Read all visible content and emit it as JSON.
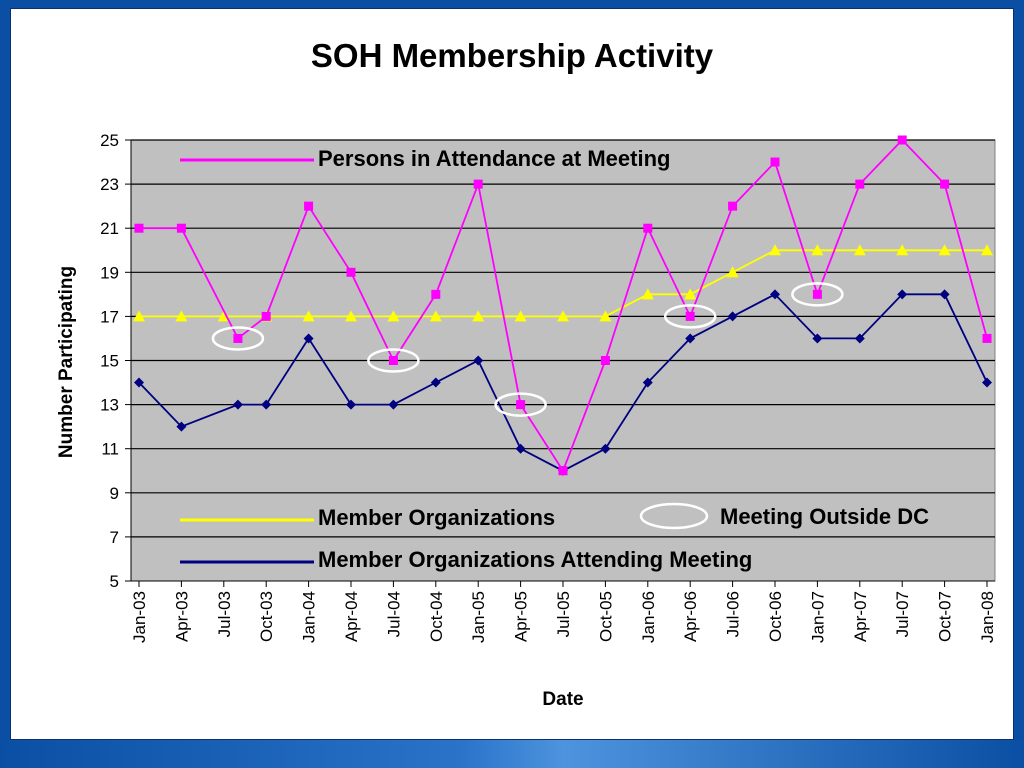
{
  "chart_data": {
    "type": "line",
    "title": "SOH Membership Activity",
    "xlabel": "Date",
    "ylabel": "Number Participating",
    "ylim": [
      5,
      25
    ],
    "yticks": [
      5,
      7,
      9,
      11,
      13,
      15,
      17,
      19,
      21,
      23,
      25
    ],
    "x_tick_labels": [
      "Jan-03",
      "Apr-03",
      "Jul-03",
      "Oct-03",
      "Jan-04",
      "Apr-04",
      "Jul-04",
      "Oct-04",
      "Jan-05",
      "Apr-05",
      "Jul-05",
      "Oct-05",
      "Jan-06",
      "Apr-06",
      "Jul-06",
      "Oct-06",
      "Jan-07",
      "Apr-07",
      "Jul-07",
      "Oct-07",
      "Jan-08"
    ],
    "grid": true,
    "series": [
      {
        "name": "Persons in Attendance at Meeting",
        "color": "#ff00ff",
        "marker": "square",
        "points": [
          {
            "x": "2003-01",
            "y": 21
          },
          {
            "x": "2003-04",
            "y": 21
          },
          {
            "x": "2003-08",
            "y": 16
          },
          {
            "x": "2003-10",
            "y": 17
          },
          {
            "x": "2004-01",
            "y": 22
          },
          {
            "x": "2004-04",
            "y": 19
          },
          {
            "x": "2004-07",
            "y": 15
          },
          {
            "x": "2004-10",
            "y": 18
          },
          {
            "x": "2005-01",
            "y": 23
          },
          {
            "x": "2005-04",
            "y": 13
          },
          {
            "x": "2005-07",
            "y": 10
          },
          {
            "x": "2005-10",
            "y": 15
          },
          {
            "x": "2006-01",
            "y": 21
          },
          {
            "x": "2006-04",
            "y": 17
          },
          {
            "x": "2006-07",
            "y": 22
          },
          {
            "x": "2006-10",
            "y": 24
          },
          {
            "x": "2007-01",
            "y": 18
          },
          {
            "x": "2007-04",
            "y": 23
          },
          {
            "x": "2007-07",
            "y": 25
          },
          {
            "x": "2007-10",
            "y": 23
          },
          {
            "x": "2008-01",
            "y": 16
          }
        ]
      },
      {
        "name": "Member Organizations",
        "color": "#ffff00",
        "marker": "triangle",
        "points": [
          {
            "x": "2003-01",
            "y": 17
          },
          {
            "x": "2003-04",
            "y": 17
          },
          {
            "x": "2003-07",
            "y": 17
          },
          {
            "x": "2003-10",
            "y": 17
          },
          {
            "x": "2004-01",
            "y": 17
          },
          {
            "x": "2004-04",
            "y": 17
          },
          {
            "x": "2004-07",
            "y": 17
          },
          {
            "x": "2004-10",
            "y": 17
          },
          {
            "x": "2005-01",
            "y": 17
          },
          {
            "x": "2005-04",
            "y": 17
          },
          {
            "x": "2005-07",
            "y": 17
          },
          {
            "x": "2005-10",
            "y": 17
          },
          {
            "x": "2006-01",
            "y": 18
          },
          {
            "x": "2006-04",
            "y": 18
          },
          {
            "x": "2006-07",
            "y": 19
          },
          {
            "x": "2006-10",
            "y": 20
          },
          {
            "x": "2007-01",
            "y": 20
          },
          {
            "x": "2007-04",
            "y": 20
          },
          {
            "x": "2007-07",
            "y": 20
          },
          {
            "x": "2007-10",
            "y": 20
          },
          {
            "x": "2008-01",
            "y": 20
          }
        ]
      },
      {
        "name": "Member Organizations Attending Meeting",
        "color": "#000080",
        "marker": "diamond",
        "points": [
          {
            "x": "2003-01",
            "y": 14
          },
          {
            "x": "2003-04",
            "y": 12
          },
          {
            "x": "2003-08",
            "y": 13
          },
          {
            "x": "2003-10",
            "y": 13
          },
          {
            "x": "2004-01",
            "y": 16
          },
          {
            "x": "2004-04",
            "y": 13
          },
          {
            "x": "2004-07",
            "y": 13
          },
          {
            "x": "2004-10",
            "y": 14
          },
          {
            "x": "2005-01",
            "y": 15
          },
          {
            "x": "2005-04",
            "y": 11
          },
          {
            "x": "2005-07",
            "y": 10
          },
          {
            "x": "2005-10",
            "y": 11
          },
          {
            "x": "2006-01",
            "y": 14
          },
          {
            "x": "2006-04",
            "y": 16
          },
          {
            "x": "2006-07",
            "y": 17
          },
          {
            "x": "2006-10",
            "y": 18
          },
          {
            "x": "2007-01",
            "y": 16
          },
          {
            "x": "2007-04",
            "y": 16
          },
          {
            "x": "2007-07",
            "y": 18
          },
          {
            "x": "2007-10",
            "y": 18
          },
          {
            "x": "2008-01",
            "y": 14
          }
        ]
      }
    ],
    "annotations": {
      "name": "Meeting Outside DC",
      "marker": "white-ellipse",
      "points": [
        {
          "x": "2003-08",
          "y": 16
        },
        {
          "x": "2004-07",
          "y": 15
        },
        {
          "x": "2005-04",
          "y": 13
        },
        {
          "x": "2006-04",
          "y": 17
        },
        {
          "x": "2007-01",
          "y": 18
        }
      ]
    }
  }
}
